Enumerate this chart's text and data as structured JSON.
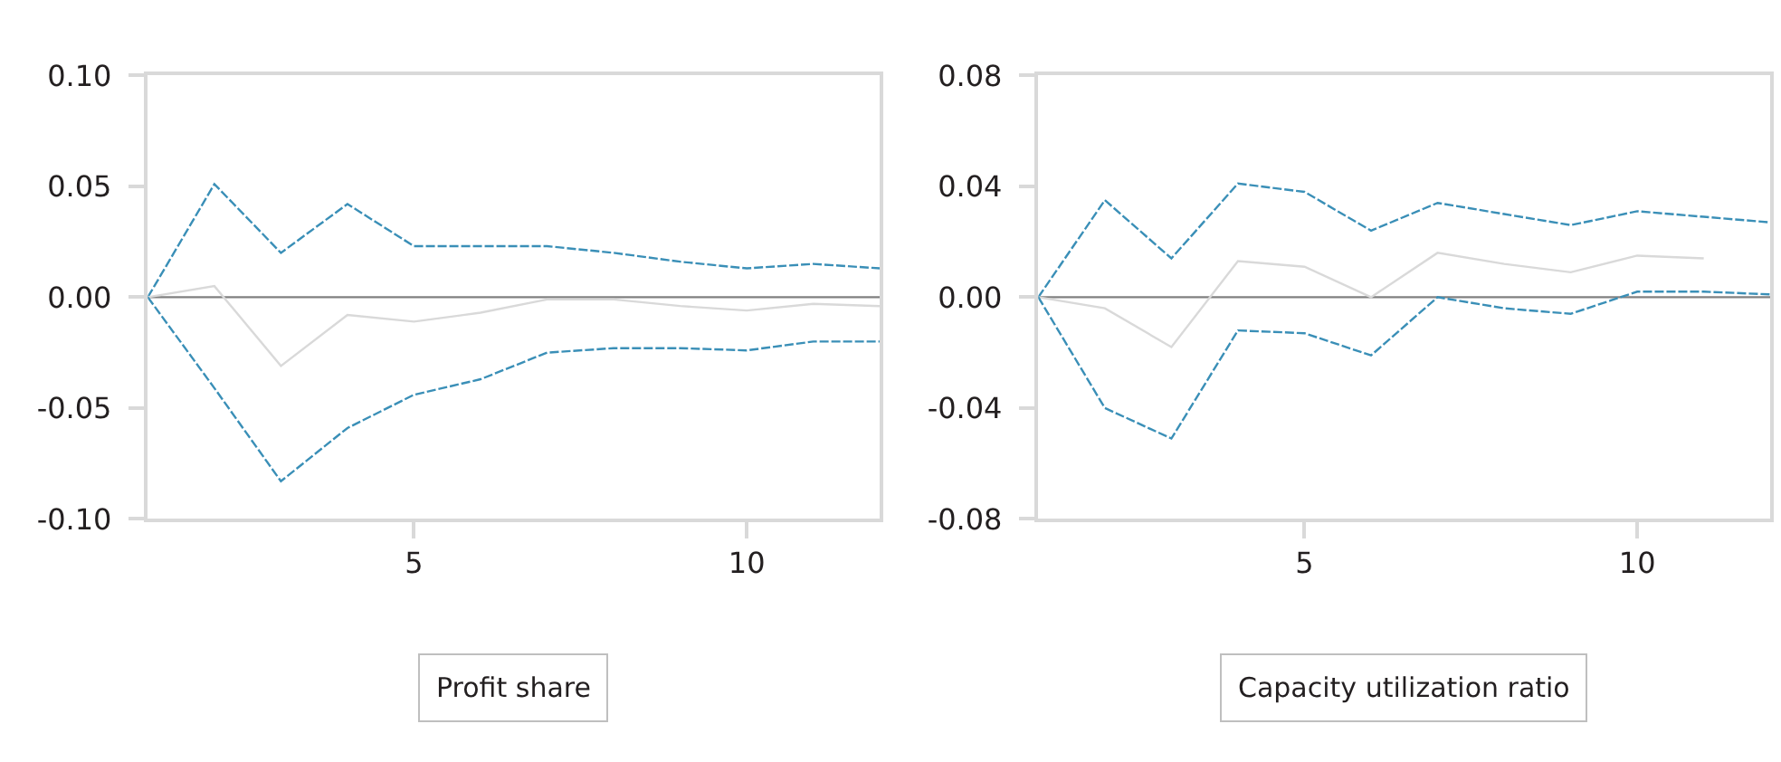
{
  "chart_data": [
    {
      "type": "line",
      "xlabel": "Profit share",
      "x": [
        1,
        2,
        3,
        4,
        5,
        6,
        7,
        8,
        9,
        10,
        11,
        12
      ],
      "series": [
        {
          "color": "#3a8fb7",
          "line_style": "dashed",
          "values": [
            0,
            0.051,
            0.02,
            0.042,
            0.023,
            0.023,
            0.023,
            0.02,
            0.016,
            0.013,
            0.015,
            0.013
          ]
        },
        {
          "color": "#d9d9d9",
          "line_style": "solid",
          "values": [
            0,
            0.005,
            -0.031,
            -0.008,
            -0.011,
            -0.007,
            -0.001,
            -0.001,
            -0.004,
            -0.006,
            -0.003,
            -0.004
          ]
        },
        {
          "color": "#3a8fb7",
          "line_style": "dashed",
          "values": [
            0,
            -0.041,
            -0.083,
            -0.059,
            -0.044,
            -0.037,
            -0.025,
            -0.023,
            -0.023,
            -0.024,
            -0.02,
            -0.02
          ]
        }
      ],
      "xlim": [
        1,
        12
      ],
      "xticks": [
        5,
        10
      ],
      "ylim": [
        -0.1,
        0.1
      ],
      "yticks": [
        {
          "value": -0.1,
          "label": "-0.10"
        },
        {
          "value": -0.05,
          "label": "-0.05"
        },
        {
          "value": 0,
          "label": "0.00"
        },
        {
          "value": 0.05,
          "label": "0.05"
        },
        {
          "value": 0.1,
          "label": "0.10"
        }
      ],
      "ref_lines": [
        {
          "axis": "y",
          "value": 0,
          "color": "#808080"
        }
      ],
      "grid": false
    },
    {
      "type": "line",
      "xlabel": "Capacity utilization ratio",
      "x": [
        1,
        2,
        3,
        4,
        5,
        6,
        7,
        8,
        9,
        10,
        11,
        12
      ],
      "series": [
        {
          "color": "#3a8fb7",
          "line_style": "dashed",
          "values": [
            0,
            0.035,
            0.014,
            0.041,
            0.038,
            0.024,
            0.034,
            0.03,
            0.026,
            0.031,
            0.029,
            0.027
          ]
        },
        {
          "color": "#d9d9d9",
          "line_style": "solid",
          "values": [
            0,
            -0.004,
            -0.018,
            0.013,
            0.011,
            0.0,
            0.016,
            0.012,
            0.009,
            0.015,
            0.014,
            null
          ]
        },
        {
          "color": "#3a8fb7",
          "line_style": "dashed",
          "values": [
            0,
            -0.04,
            -0.051,
            -0.012,
            -0.013,
            -0.021,
            0.0,
            -0.004,
            -0.006,
            0.002,
            0.002,
            0.001
          ]
        }
      ],
      "xlim": [
        1,
        12
      ],
      "xticks": [
        5,
        10
      ],
      "ylim": [
        -0.08,
        0.08
      ],
      "yticks": [
        {
          "value": -0.08,
          "label": "-0.08"
        },
        {
          "value": -0.04,
          "label": "-0.04"
        },
        {
          "value": 0,
          "label": "0.00"
        },
        {
          "value": 0.04,
          "label": "0.04"
        },
        {
          "value": 0.08,
          "label": "0.08"
        }
      ],
      "ref_lines": [
        {
          "axis": "y",
          "value": 0,
          "color": "#808080"
        }
      ],
      "grid": false
    }
  ]
}
